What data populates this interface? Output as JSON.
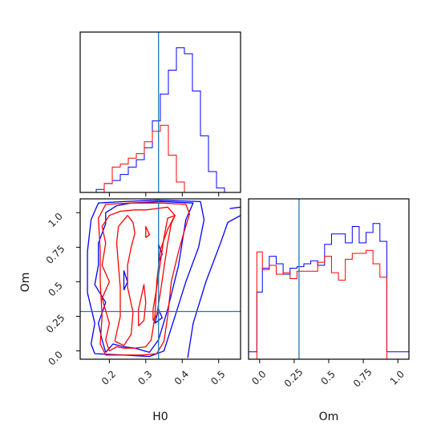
{
  "chart_data": {
    "type": "corner",
    "parameters": [
      "H0",
      "Om"
    ],
    "truth": {
      "H0": 0.335,
      "Om": 0.285
    },
    "colors": {
      "series_a": "#0000ff",
      "series_b": "#ff0000",
      "truth": "#1f77b4"
    },
    "panels": [
      {
        "panel": "hist-H0",
        "type": "histogram",
        "xlim": [
          0.12,
          0.56
        ],
        "bin_edges": [
          0.12,
          0.142,
          0.164,
          0.186,
          0.208,
          0.23,
          0.252,
          0.274,
          0.296,
          0.318,
          0.34,
          0.362,
          0.384,
          0.406,
          0.428,
          0.45,
          0.472,
          0.494,
          0.516,
          0.538,
          0.56
        ],
        "series": [
          {
            "values": [
              0,
              0,
              0.02,
              0.06,
              0.08,
              0.12,
              0.17,
              0.22,
              0.3,
              0.48,
              0.66,
              0.82,
              0.97,
              0.93,
              0.68,
              0.38,
              0.14,
              0.03,
              0,
              0
            ]
          },
          {
            "values": [
              0,
              0,
              0,
              0.06,
              0.17,
              0.19,
              0.23,
              0.26,
              0.34,
              0.41,
              0.45,
              0.25,
              0.07,
              0,
              0,
              0,
              0,
              0,
              0,
              0
            ]
          }
        ],
        "xticks": [
          0.2,
          0.3,
          0.4,
          0.5
        ]
      },
      {
        "panel": "hist-Om",
        "type": "histogram",
        "xlim": [
          -0.08,
          1.08
        ],
        "bin_edges": [
          -0.08,
          -0.02,
          0.02,
          0.07,
          0.12,
          0.17,
          0.22,
          0.27,
          0.32,
          0.37,
          0.42,
          0.47,
          0.52,
          0.57,
          0.62,
          0.67,
          0.72,
          0.77,
          0.82,
          0.87,
          0.92,
          0.97,
          1.02,
          1.08
        ],
        "series": [
          {
            "values": [
              0.05,
              0.45,
              0.61,
              0.69,
              0.64,
              0.57,
              0.61,
              0.62,
              0.64,
              0.66,
              0.63,
              0.77,
              0.84,
              0.84,
              0.78,
              0.89,
              0.78,
              0.85,
              0.91,
              0.79,
              0.05,
              0.05,
              0.05
            ]
          },
          {
            "values": [
              0,
              0.72,
              0.6,
              0.63,
              0.57,
              0.58,
              0.54,
              0.59,
              0.59,
              0.59,
              0.65,
              0.69,
              0.58,
              0.53,
              0.67,
              0.71,
              0.71,
              0.73,
              0.64,
              0.55,
              0,
              0,
              0
            ]
          }
        ],
        "xticks": [
          0.0,
          0.25,
          0.5,
          0.75,
          1.0
        ]
      },
      {
        "panel": "contour-Om-vs-H0",
        "type": "contour",
        "xlim": [
          0.12,
          0.56
        ],
        "ylim": [
          -0.06,
          1.1
        ],
        "xticks": [
          0.2,
          0.3,
          0.4,
          0.5
        ],
        "yticks": [
          0.0,
          0.25,
          0.5,
          0.75,
          1.0
        ],
        "series": [
          {
            "contours": [
              [
                [
                  0.19,
                  -0.01
                ],
                [
                  0.21,
                  0.05
                ],
                [
                  0.24,
                  0.03
                ],
                [
                  0.27,
                  0.02
                ],
                [
                  0.31,
                  -0.01
                ],
                [
                  0.335,
                  0.08
                ],
                [
                  0.36,
                  0.3
                ],
                [
                  0.39,
                  0.62
                ],
                [
                  0.41,
                  0.95
                ],
                [
                  0.43,
                  1.07
                ],
                [
                  0.34,
                  1.08
                ],
                [
                  0.26,
                  1.07
                ],
                [
                  0.22,
                  1.05
                ],
                [
                  0.19,
                  1.0
                ],
                [
                  0.19,
                  0.92
                ],
                [
                  0.17,
                  0.78
                ],
                [
                  0.17,
                  0.62
                ],
                [
                  0.16,
                  0.48
                ],
                [
                  0.19,
                  0.35
                ],
                [
                  0.17,
                  0.2
                ],
                [
                  0.18,
                  0.08
                ],
                [
                  0.19,
                  -0.01
                ]
              ],
              [
                [
                  0.16,
                  -0.02
                ],
                [
                  0.24,
                  -0.03
                ],
                [
                  0.31,
                  -0.04
                ],
                [
                  0.35,
                  0.0
                ],
                [
                  0.38,
                  0.25
                ],
                [
                  0.41,
                  0.5
                ],
                [
                  0.445,
                  0.75
                ],
                [
                  0.46,
                  0.95
                ],
                [
                  0.45,
                  1.08
                ],
                [
                  0.33,
                  1.09
                ],
                [
                  0.24,
                  1.08
                ],
                [
                  0.17,
                  1.07
                ],
                [
                  0.15,
                  0.95
                ],
                [
                  0.14,
                  0.72
                ],
                [
                  0.14,
                  0.42
                ],
                [
                  0.16,
                  0.2
                ],
                [
                  0.15,
                  0.05
                ],
                [
                  0.16,
                  -0.02
                ]
              ],
              [
                [
                  0.415,
                  -0.05
                ],
                [
                  0.43,
                  0.2
                ],
                [
                  0.465,
                  0.5
                ],
                [
                  0.505,
                  0.78
                ],
                [
                  0.525,
                  0.93
                ],
                [
                  0.56,
                  0.98
                ]
              ],
              [
                [
                  0.53,
                  1.03
                ],
                [
                  0.56,
                  1.04
                ]
              ],
              [
                [
                  0.325,
                  0.2
                ],
                [
                  0.335,
                  0.3
                ],
                [
                  0.345,
                  0.24
                ],
                [
                  0.325,
                  0.2
                ]
              ],
              [
                [
                  0.24,
                  0.44
                ],
                [
                  0.24,
                  0.58
                ],
                [
                  0.25,
                  0.5
                ],
                [
                  0.24,
                  0.44
                ]
              ],
              [
                [
                  0.335,
                  0.64
                ],
                [
                  0.335,
                  0.77
                ],
                [
                  0.345,
                  0.7
                ],
                [
                  0.335,
                  0.64
                ]
              ]
            ]
          },
          {
            "contours": [
              [
                [
                  0.2,
                  0.0
                ],
                [
                  0.22,
                  0.03
                ],
                [
                  0.24,
                  0.02
                ],
                [
                  0.27,
                  0.02
                ],
                [
                  0.3,
                  0.03
                ],
                [
                  0.315,
                  0.08
                ],
                [
                  0.325,
                  0.25
                ],
                [
                  0.33,
                  0.5
                ],
                [
                  0.34,
                  0.73
                ],
                [
                  0.36,
                  0.88
                ],
                [
                  0.38,
                  0.98
                ],
                [
                  0.36,
                  1.04
                ],
                [
                  0.33,
                  1.03
                ],
                [
                  0.3,
                  1.02
                ],
                [
                  0.27,
                  1.02
                ],
                [
                  0.23,
                  1.01
                ],
                [
                  0.2,
                  0.98
                ],
                [
                  0.18,
                  0.9
                ],
                [
                  0.19,
                  0.78
                ],
                [
                  0.18,
                  0.62
                ],
                [
                  0.2,
                  0.5
                ],
                [
                  0.18,
                  0.38
                ],
                [
                  0.2,
                  0.2
                ],
                [
                  0.19,
                  0.08
                ],
                [
                  0.2,
                  0.0
                ]
              ],
              [
                [
                  0.19,
                  -0.03
                ],
                [
                  0.24,
                  -0.03
                ],
                [
                  0.29,
                  -0.03
                ],
                [
                  0.33,
                  -0.02
                ],
                [
                  0.35,
                  0.07
                ],
                [
                  0.36,
                  0.25
                ],
                [
                  0.37,
                  0.5
                ],
                [
                  0.39,
                  0.72
                ],
                [
                  0.405,
                  0.86
                ],
                [
                  0.42,
                  0.99
                ],
                [
                  0.41,
                  1.06
                ],
                [
                  0.34,
                  1.07
                ],
                [
                  0.26,
                  1.07
                ],
                [
                  0.19,
                  1.06
                ],
                [
                  0.17,
                  0.96
                ],
                [
                  0.175,
                  0.72
                ],
                [
                  0.175,
                  0.5
                ],
                [
                  0.18,
                  0.25
                ],
                [
                  0.175,
                  0.05
                ],
                [
                  0.19,
                  -0.03
                ]
              ],
              [
                [
                  0.215,
                  0.07
                ],
                [
                  0.24,
                  0.04
                ],
                [
                  0.26,
                  0.12
                ],
                [
                  0.265,
                  0.28
                ],
                [
                  0.25,
                  0.46
                ],
                [
                  0.25,
                  0.62
                ],
                [
                  0.26,
                  0.75
                ],
                [
                  0.27,
                  0.85
                ],
                [
                  0.265,
                  0.93
                ],
                [
                  0.25,
                  0.98
                ],
                [
                  0.225,
                  0.9
                ],
                [
                  0.22,
                  0.78
                ],
                [
                  0.225,
                  0.62
                ],
                [
                  0.23,
                  0.46
                ],
                [
                  0.23,
                  0.25
                ],
                [
                  0.215,
                  0.07
                ]
              ],
              [
                [
                  0.28,
                  0.18
                ],
                [
                  0.295,
                  0.22
                ],
                [
                  0.3,
                  0.35
                ],
                [
                  0.295,
                  0.48
                ],
                [
                  0.29,
                  0.42
                ],
                [
                  0.28,
                  0.3
                ],
                [
                  0.28,
                  0.18
                ]
              ],
              [
                [
                  0.3,
                  0.82
                ],
                [
                  0.31,
                  0.84
                ],
                [
                  0.3,
                  0.9
                ],
                [
                  0.3,
                  0.82
                ]
              ],
              [
                [
                  0.32,
                  0.22
                ],
                [
                  0.33,
                  0.26
                ],
                [
                  0.34,
                  0.42
                ],
                [
                  0.35,
                  0.6
                ],
                [
                  0.36,
                  0.78
                ],
                [
                  0.37,
                  0.92
                ],
                [
                  0.38,
                  0.98
                ],
                [
                  0.36,
                  0.96
                ],
                [
                  0.35,
                  0.82
                ],
                [
                  0.34,
                  0.64
                ],
                [
                  0.33,
                  0.46
                ],
                [
                  0.32,
                  0.3
                ],
                [
                  0.32,
                  0.22
                ]
              ]
            ]
          }
        ]
      }
    ],
    "xlabels": [
      "H0",
      "Om"
    ],
    "ylabel": "Om"
  }
}
